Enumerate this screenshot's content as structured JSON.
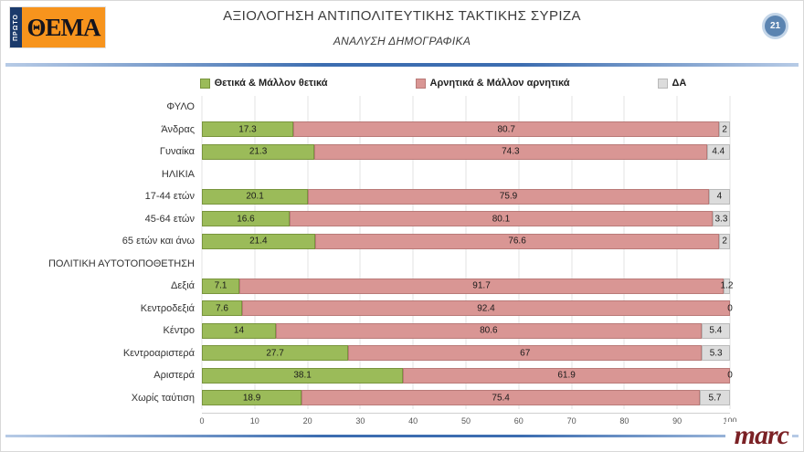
{
  "header": {
    "logo": {
      "top": "ΠΡΩΤΟ",
      "main": "ΘΕΜΑ"
    },
    "title": "ΑΞΙΟΛΟΓΗΣΗ ΑΝΤΙΠΟΛΙΤΕΥΤΙΚΗΣ ΤΑΚΤΙΚΗΣ ΣΥΡΙΖΑ",
    "subtitle": "ΑΝΑΛΥΣΗ ΔΗΜΟΓΡΑΦΙΚΑ",
    "page_number": "21"
  },
  "footer": {
    "brand": "marc"
  },
  "chart_data": {
    "type": "bar",
    "orientation": "horizontal",
    "stacked": true,
    "title": "ΑΞΙΟΛΟΓΗΣΗ ΑΝΤΙΠΟΛΙΤΕΥΤΙΚΗΣ ΤΑΚΤΙΚΗΣ ΣΥΡΙΖΑ — ΑΝΑΛΥΣΗ ΔΗΜΟΓΡΑΦΙΚΑ",
    "legend": [
      "Θετικά & Μάλλον θετικά",
      "Αρνητικά & Μάλλον αρνητικά",
      "ΔΑ"
    ],
    "legend_position": "top",
    "colors": {
      "positive": "#9bbb59",
      "negative": "#d99694",
      "dk": "#dcdcdc"
    },
    "border_colors": [
      "#79953d",
      "#b97a78",
      "#b9b9b9"
    ],
    "xlim": [
      0,
      100
    ],
    "x_ticks": [
      0,
      10,
      20,
      30,
      40,
      50,
      60,
      70,
      80,
      90,
      100
    ],
    "grid": true,
    "rows": [
      {
        "type": "group",
        "label": "ΦΥΛΟ"
      },
      {
        "type": "data",
        "label": "Άνδρας",
        "values": [
          17.3,
          80.7,
          2
        ]
      },
      {
        "type": "data",
        "label": "Γυναίκα",
        "values": [
          21.3,
          74.3,
          4.4
        ]
      },
      {
        "type": "group",
        "label": "ΗΛΙΚΙΑ"
      },
      {
        "type": "data",
        "label": "17-44 ετών",
        "values": [
          20.1,
          75.9,
          4
        ]
      },
      {
        "type": "data",
        "label": "45-64 ετών",
        "values": [
          16.6,
          80.1,
          3.3
        ]
      },
      {
        "type": "data",
        "label": "65 ετών και άνω",
        "values": [
          21.4,
          76.6,
          2
        ]
      },
      {
        "type": "group",
        "label": "ΠΟΛΙΤΙΚΗ ΑΥΤΟΤΟΠΟΘΕΤΗΣΗ"
      },
      {
        "type": "data",
        "label": "Δεξιά",
        "values": [
          7.1,
          91.7,
          1.2
        ]
      },
      {
        "type": "data",
        "label": "Κεντροδεξιά",
        "values": [
          7.6,
          92.4,
          0
        ]
      },
      {
        "type": "data",
        "label": "Κέντρο",
        "values": [
          14,
          80.6,
          5.4
        ]
      },
      {
        "type": "data",
        "label": "Κεντροαριστερά",
        "values": [
          27.7,
          67,
          5.3
        ]
      },
      {
        "type": "data",
        "label": "Αριστερά",
        "values": [
          38.1,
          61.9,
          0
        ]
      },
      {
        "type": "data",
        "label": "Χωρίς ταύτιση",
        "values": [
          18.9,
          75.4,
          5.7
        ]
      }
    ]
  }
}
